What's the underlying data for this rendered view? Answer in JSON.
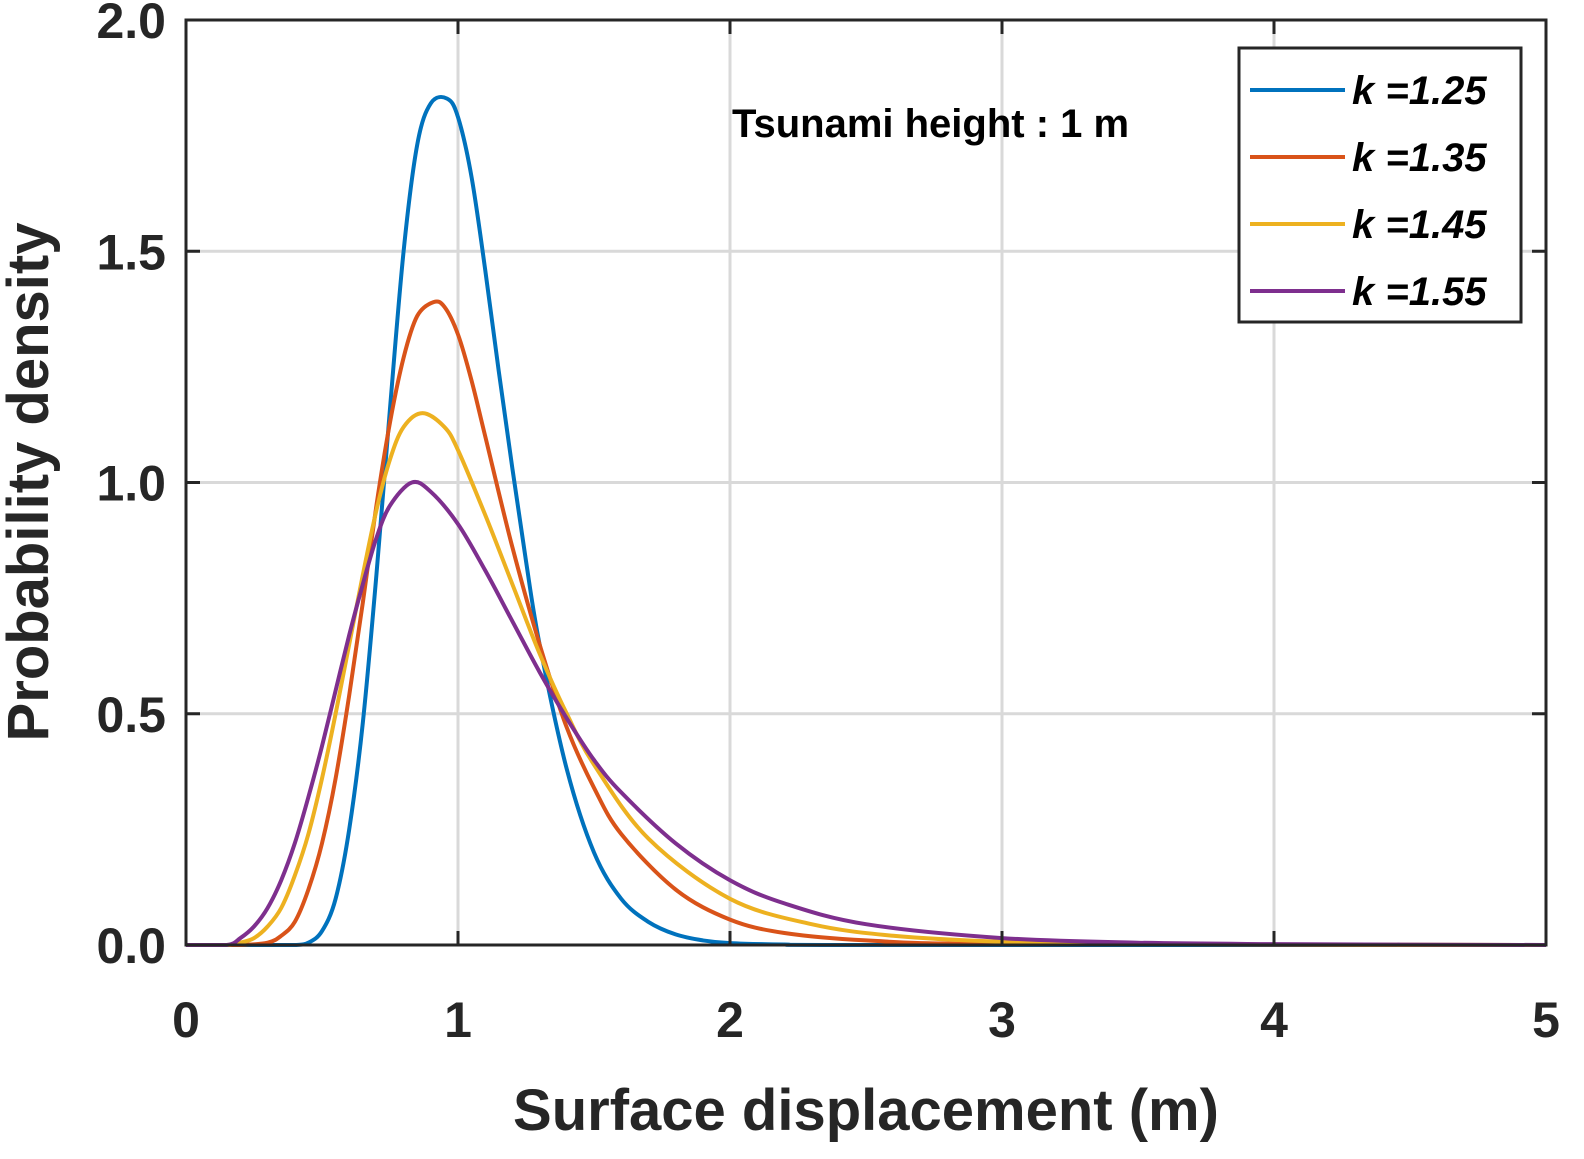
{
  "chart_data": {
    "type": "line",
    "xlabel": "Surface displacement (m)",
    "ylabel": "Probability density",
    "xlim": [
      0,
      5
    ],
    "ylim": [
      0,
      2
    ],
    "xticks": [
      "0",
      "1",
      "2",
      "3",
      "4",
      "5"
    ],
    "yticks": [
      "0.0",
      "0.5",
      "1.0",
      "1.5",
      "2.0"
    ],
    "grid": true,
    "annotation": "Tsunami height : 1 m",
    "legend_position": "top-right",
    "series": [
      {
        "name": "k =1.25",
        "color": "#0072BD",
        "x": [
          0,
          0.3,
          0.4,
          0.45,
          0.5,
          0.55,
          0.6,
          0.65,
          0.7,
          0.75,
          0.8,
          0.85,
          0.9,
          0.96,
          1.0,
          1.05,
          1.1,
          1.15,
          1.2,
          1.25,
          1.3,
          1.4,
          1.5,
          1.6,
          1.7,
          1.8,
          1.9,
          2.0,
          2.2,
          2.5,
          5.0
        ],
        "y": [
          0,
          0,
          0,
          0.005,
          0.03,
          0.1,
          0.25,
          0.48,
          0.8,
          1.16,
          1.5,
          1.73,
          1.82,
          1.83,
          1.79,
          1.66,
          1.46,
          1.24,
          1.03,
          0.83,
          0.65,
          0.38,
          0.2,
          0.1,
          0.05,
          0.023,
          0.01,
          0.004,
          0.001,
          0,
          0
        ]
      },
      {
        "name": "k =1.35",
        "color": "#D95319",
        "x": [
          0,
          0.2,
          0.3,
          0.35,
          0.4,
          0.45,
          0.5,
          0.55,
          0.6,
          0.65,
          0.7,
          0.75,
          0.8,
          0.85,
          0.91,
          0.95,
          1.0,
          1.05,
          1.1,
          1.2,
          1.3,
          1.4,
          1.5,
          1.6,
          1.8,
          2.0,
          2.2,
          2.5,
          3.0,
          5.0
        ],
        "y": [
          0,
          0,
          0.005,
          0.02,
          0.05,
          0.12,
          0.22,
          0.36,
          0.54,
          0.74,
          0.95,
          1.13,
          1.27,
          1.36,
          1.39,
          1.38,
          1.32,
          1.22,
          1.1,
          0.86,
          0.65,
          0.47,
          0.34,
          0.24,
          0.12,
          0.055,
          0.026,
          0.01,
          0.002,
          0
        ]
      },
      {
        "name": "k =1.45",
        "color": "#EDB120",
        "x": [
          0,
          0.15,
          0.2,
          0.25,
          0.3,
          0.35,
          0.4,
          0.45,
          0.5,
          0.55,
          0.6,
          0.65,
          0.7,
          0.75,
          0.8,
          0.87,
          0.95,
          1.0,
          1.1,
          1.2,
          1.3,
          1.4,
          1.5,
          1.7,
          2.0,
          2.3,
          2.6,
          3.0,
          3.5,
          5.0
        ],
        "y": [
          0,
          0,
          0.005,
          0.015,
          0.04,
          0.08,
          0.15,
          0.24,
          0.36,
          0.5,
          0.65,
          0.8,
          0.94,
          1.05,
          1.12,
          1.15,
          1.12,
          1.07,
          0.93,
          0.78,
          0.63,
          0.5,
          0.39,
          0.23,
          0.1,
          0.045,
          0.02,
          0.007,
          0.002,
          0
        ]
      },
      {
        "name": "k =1.55",
        "color": "#7E2F8E",
        "x": [
          0,
          0.15,
          0.2,
          0.25,
          0.3,
          0.35,
          0.4,
          0.45,
          0.5,
          0.55,
          0.6,
          0.65,
          0.7,
          0.75,
          0.83,
          0.9,
          1.0,
          1.1,
          1.2,
          1.3,
          1.4,
          1.5,
          1.6,
          1.8,
          2.0,
          2.2,
          2.5,
          3.0,
          3.5,
          4.0,
          5.0
        ],
        "y": [
          0,
          0,
          0.015,
          0.04,
          0.08,
          0.14,
          0.22,
          0.32,
          0.43,
          0.55,
          0.67,
          0.78,
          0.88,
          0.95,
          1.0,
          0.98,
          0.91,
          0.81,
          0.7,
          0.59,
          0.49,
          0.4,
          0.33,
          0.22,
          0.14,
          0.09,
          0.045,
          0.015,
          0.005,
          0.002,
          0
        ]
      }
    ]
  }
}
